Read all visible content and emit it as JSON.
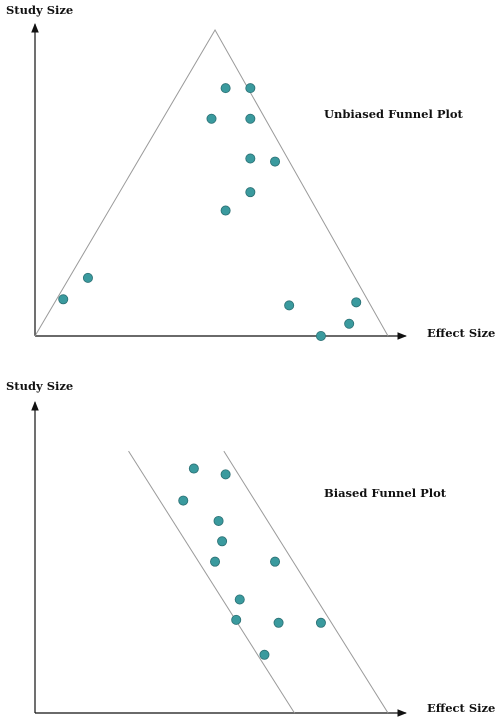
{
  "colors": {
    "point_fill": "#3a9a9e",
    "axis": "#111111",
    "guide": "#9a9a9a"
  },
  "chart_data": [
    {
      "type": "scatter",
      "title": "Unbiased Funnel Plot",
      "xlabel": "Effect Size",
      "ylabel": "Study Size",
      "grid": false,
      "xlim": [
        0,
        100
      ],
      "ylim": [
        0,
        100
      ],
      "guide": {
        "shape": "triangle",
        "left_base_x": 0,
        "apex": [
          51,
          100
        ],
        "right_base_x": 100
      },
      "series": [
        {
          "x": [
            54,
            61,
            50,
            61,
            61,
            68,
            61,
            54,
            15,
            8,
            72,
            91,
            89,
            81
          ],
          "y": [
            81,
            81,
            71,
            71,
            58,
            57,
            47,
            41,
            19,
            12,
            10,
            11,
            4,
            0
          ]
        }
      ]
    },
    {
      "type": "scatter",
      "title": "Biased Funnel Plot",
      "xlabel": "Effect Size",
      "ylabel": "Study Size",
      "grid": false,
      "xlim": [
        0,
        100
      ],
      "ylim": [
        0,
        100
      ],
      "guide": {
        "shape": "parallel-band",
        "lines": [
          [
            [
              26.5,
              90
            ],
            [
              73.5,
              0
            ]
          ],
          [
            [
              53.5,
              90
            ],
            [
              100,
              0
            ]
          ]
        ]
      },
      "series": [
        {
          "x": [
            45,
            54,
            42,
            52,
            53,
            51,
            68,
            58,
            57,
            69,
            81,
            65
          ],
          "y": [
            84,
            82,
            73,
            66,
            59,
            52,
            52,
            39,
            32,
            31,
            31,
            20
          ]
        }
      ]
    }
  ]
}
